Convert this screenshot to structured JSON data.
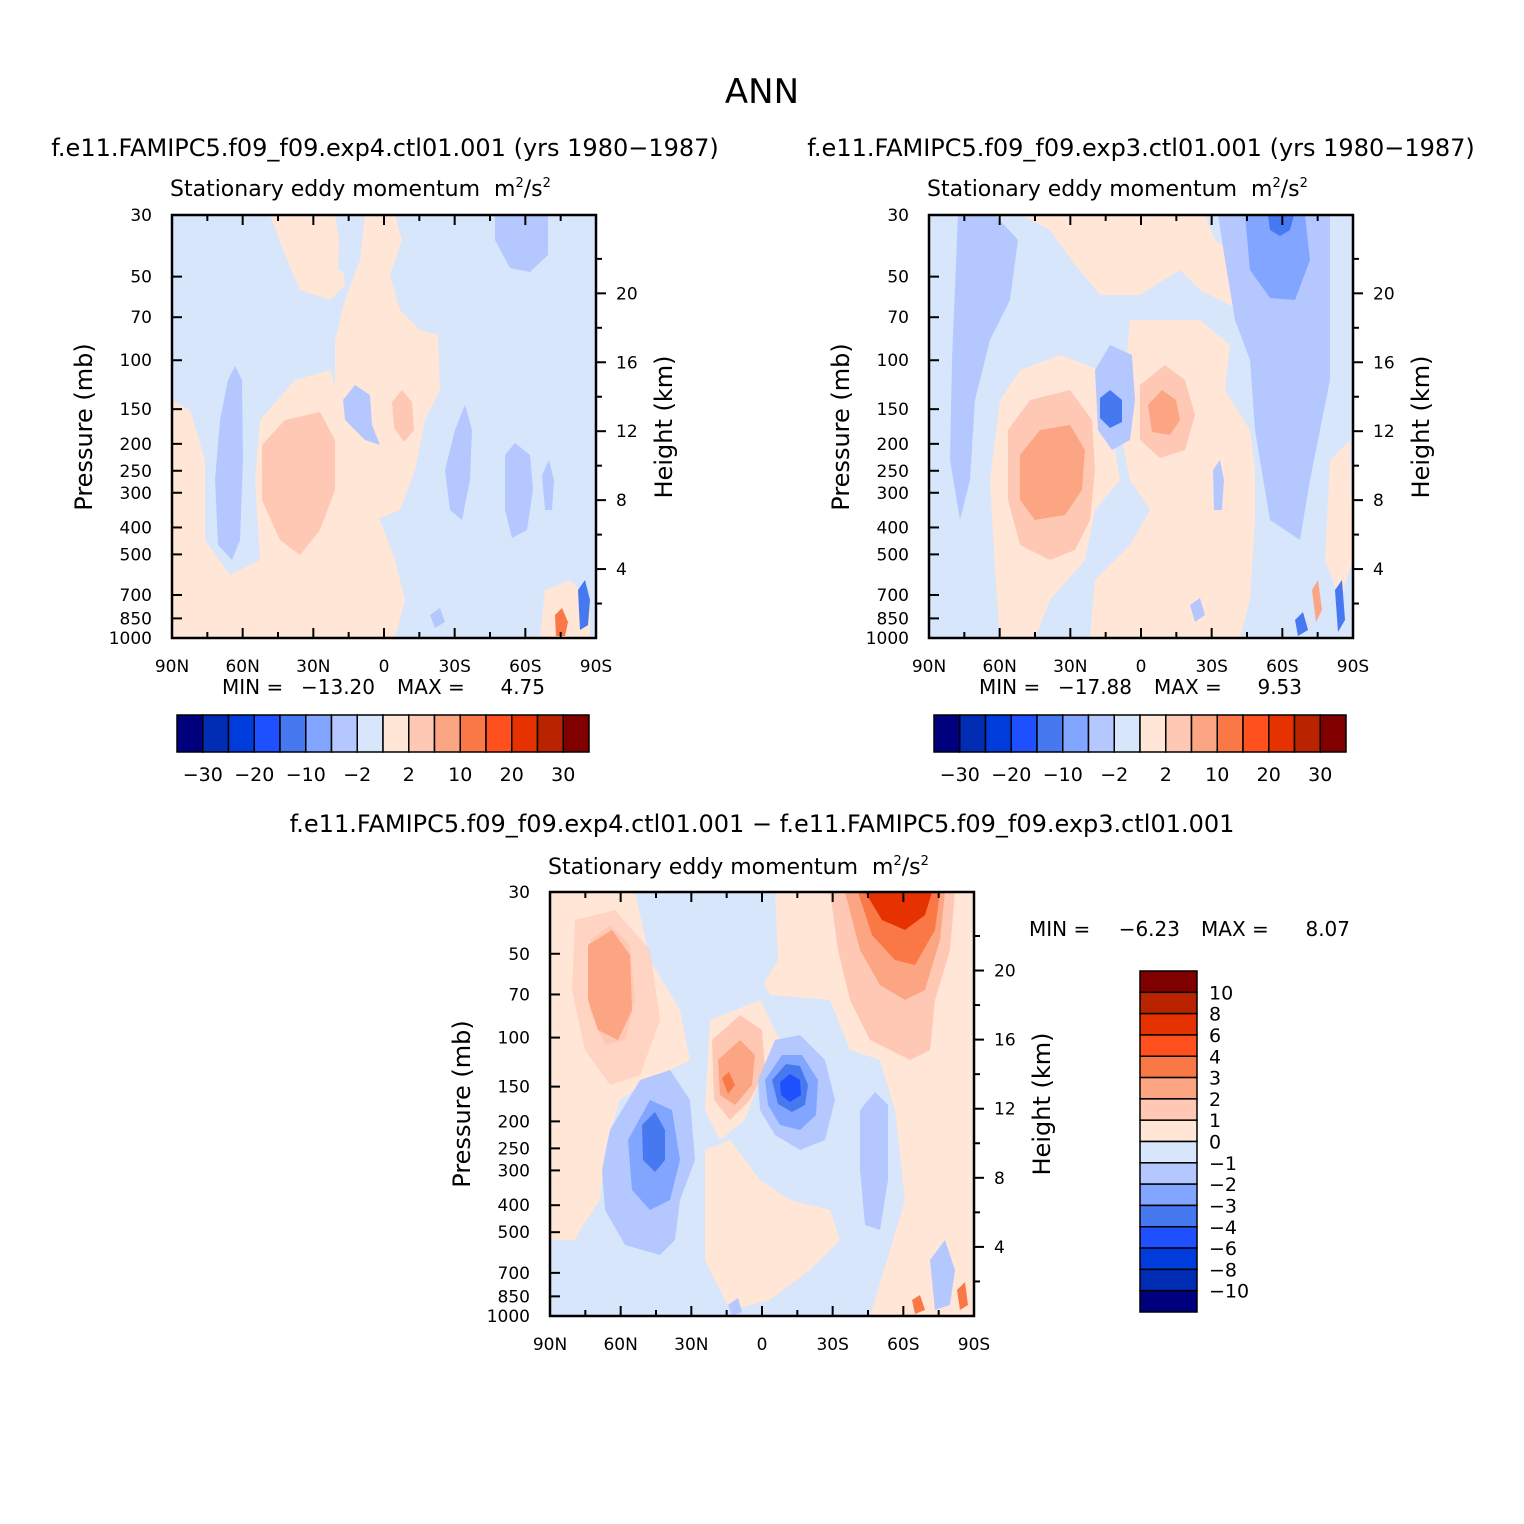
{
  "title": "ANN",
  "diff_title": "f.e11.FAMIPC5.f09_f09.exp4.ctl01.001 − f.e11.FAMIPC5.f09_f09.exp3.ctl01.001",
  "colors": {
    "panel_scale": [
      "#00007f",
      "#002db4",
      "#003cdc",
      "#1e50ff",
      "#4678f0",
      "#82a5ff",
      "#b4c8ff",
      "#d7e6fa",
      "#ffe6d7",
      "#ffc8b4",
      "#fca582",
      "#fa7846",
      "#ff501e",
      "#e63200",
      "#b92300",
      "#800000"
    ],
    "diff_scale": [
      "#00007f",
      "#002db4",
      "#003cdc",
      "#1e50ff",
      "#4678f0",
      "#82a5ff",
      "#b4c8ff",
      "#d7e6fa",
      "#ffe6d7",
      "#ffc8b4",
      "#fca582",
      "#fa7846",
      "#ff501e",
      "#e63200",
      "#b92300",
      "#800000"
    ]
  },
  "chart_data": [
    {
      "type": "contour",
      "panel_title": "f.e11.FAMIPC5.f09_f09.exp4.ctl01.001 (yrs 1980−1987)",
      "subtitle": "Stationary eddy momentum",
      "units_base": "m",
      "units_exp1": "2",
      "units_slash": "/s",
      "units_exp2": "2",
      "xlabel": "",
      "ylabel": "Pressure (mb)",
      "ylabel_right": "Height (km)",
      "x_ticks": [
        "90N",
        "60N",
        "30N",
        "0",
        "30S",
        "60S",
        "90S"
      ],
      "y_ticks": [
        "30",
        "50",
        "70",
        "100",
        "150",
        "200",
        "250",
        "300",
        "400",
        "500",
        "700",
        "850",
        "1000"
      ],
      "y_ticks_right": [
        "20",
        "16",
        "12",
        "8",
        "4"
      ],
      "min_label": "MIN =",
      "min_value": "−13.20",
      "max_label": "MAX =",
      "max_value": "4.75",
      "colorbar_labels": [
        "−30",
        "−20",
        "−10",
        "−2",
        "2",
        "10",
        "20",
        "30"
      ],
      "levels": [
        -35,
        -30,
        -25,
        -20,
        -15,
        -10,
        -5,
        -2,
        0,
        2,
        5,
        10,
        15,
        20,
        25,
        30,
        35
      ]
    },
    {
      "type": "contour",
      "panel_title": "f.e11.FAMIPC5.f09_f09.exp3.ctl01.001 (yrs 1980−1987)",
      "subtitle": "Stationary eddy momentum",
      "units_base": "m",
      "units_exp1": "2",
      "units_slash": "/s",
      "units_exp2": "2",
      "xlabel": "",
      "ylabel": "Pressure (mb)",
      "ylabel_right": "Height (km)",
      "x_ticks": [
        "90N",
        "60N",
        "30N",
        "0",
        "30S",
        "60S",
        "90S"
      ],
      "y_ticks": [
        "30",
        "50",
        "70",
        "100",
        "150",
        "200",
        "250",
        "300",
        "400",
        "500",
        "700",
        "850",
        "1000"
      ],
      "y_ticks_right": [
        "20",
        "16",
        "12",
        "8",
        "4"
      ],
      "min_label": "MIN =",
      "min_value": "−17.88",
      "max_label": "MAX =",
      "max_value": "9.53",
      "colorbar_labels": [
        "−30",
        "−20",
        "−10",
        "−2",
        "2",
        "10",
        "20",
        "30"
      ],
      "levels": [
        -35,
        -30,
        -25,
        -20,
        -15,
        -10,
        -5,
        -2,
        0,
        2,
        5,
        10,
        15,
        20,
        25,
        30,
        35
      ]
    },
    {
      "type": "contour",
      "panel_title": "",
      "subtitle": "Stationary eddy momentum",
      "units_base": "m",
      "units_exp1": "2",
      "units_slash": "/s",
      "units_exp2": "2",
      "xlabel": "",
      "ylabel": "Pressure (mb)",
      "ylabel_right": "Height (km)",
      "x_ticks": [
        "90N",
        "60N",
        "30N",
        "0",
        "30S",
        "60S",
        "90S"
      ],
      "y_ticks": [
        "30",
        "50",
        "70",
        "100",
        "150",
        "200",
        "250",
        "300",
        "400",
        "500",
        "700",
        "850",
        "1000"
      ],
      "y_ticks_right": [
        "20",
        "16",
        "12",
        "8",
        "4"
      ],
      "min_label": "MIN =",
      "min_value": "−6.23",
      "max_label": "MAX =",
      "max_value": "8.07",
      "colorbar_labels": [
        "10",
        "8",
        "6",
        "4",
        "3",
        "2",
        "1",
        "0",
        "−1",
        "−2",
        "−3",
        "−4",
        "−6",
        "−8",
        "−10"
      ],
      "levels": [
        -12,
        -10,
        -8,
        -6,
        -4,
        -3,
        -2,
        -1,
        0,
        1,
        2,
        3,
        4,
        6,
        8,
        10,
        12
      ]
    }
  ]
}
